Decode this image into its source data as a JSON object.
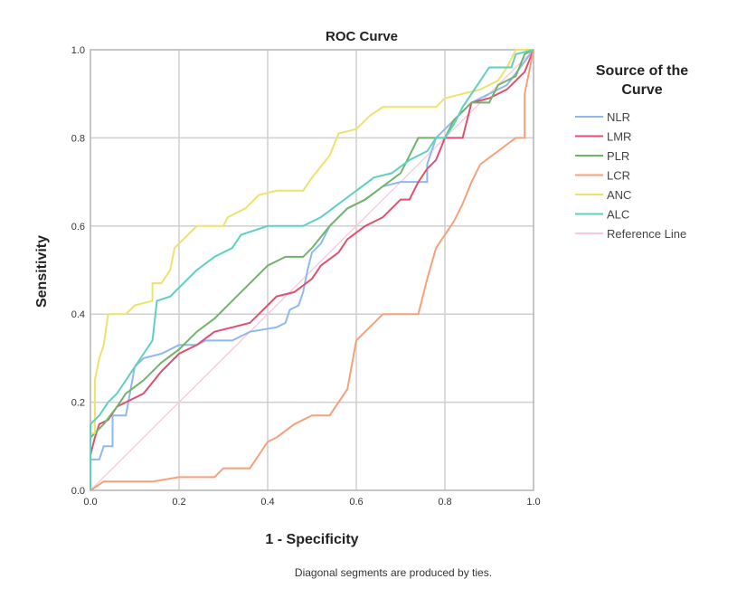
{
  "chart_data": {
    "type": "line",
    "title": "ROC Curve",
    "xlabel": "1 - Specificity",
    "ylabel": "Sensitivity",
    "xlim": [
      0,
      1
    ],
    "ylim": [
      0,
      1
    ],
    "grid": true,
    "xticks": [
      "0.0",
      "0.2",
      "0.4",
      "0.6",
      "0.8",
      "1.0"
    ],
    "yticks": [
      "0.0",
      "0.2",
      "0.4",
      "0.6",
      "0.8",
      "1.0"
    ],
    "legend": {
      "title": "Source of the Curve",
      "placement": "right"
    },
    "footnote": "Diagonal segments are produced by ties.",
    "series": [
      {
        "name": "NLR",
        "color": "#8fb8ee",
        "points": [
          [
            0,
            0
          ],
          [
            0,
            0.07
          ],
          [
            0.02,
            0.07
          ],
          [
            0.03,
            0.1
          ],
          [
            0.05,
            0.1
          ],
          [
            0.05,
            0.17
          ],
          [
            0.08,
            0.17
          ],
          [
            0.1,
            0.28
          ],
          [
            0.12,
            0.3
          ],
          [
            0.16,
            0.31
          ],
          [
            0.2,
            0.33
          ],
          [
            0.24,
            0.33
          ],
          [
            0.26,
            0.34
          ],
          [
            0.32,
            0.34
          ],
          [
            0.36,
            0.36
          ],
          [
            0.42,
            0.37
          ],
          [
            0.44,
            0.38
          ],
          [
            0.45,
            0.41
          ],
          [
            0.47,
            0.42
          ],
          [
            0.48,
            0.45
          ],
          [
            0.49,
            0.5
          ],
          [
            0.5,
            0.54
          ],
          [
            0.52,
            0.56
          ],
          [
            0.54,
            0.6
          ],
          [
            0.58,
            0.64
          ],
          [
            0.62,
            0.66
          ],
          [
            0.66,
            0.69
          ],
          [
            0.7,
            0.7
          ],
          [
            0.76,
            0.7
          ],
          [
            0.76,
            0.74
          ],
          [
            0.78,
            0.8
          ],
          [
            0.82,
            0.84
          ],
          [
            0.86,
            0.88
          ],
          [
            0.9,
            0.9
          ],
          [
            0.94,
            0.92
          ],
          [
            0.97,
            0.96
          ],
          [
            1,
            1
          ]
        ]
      },
      {
        "name": "LMR",
        "color": "#e0506e",
        "points": [
          [
            0,
            0
          ],
          [
            0,
            0.08
          ],
          [
            0.01,
            0.12
          ],
          [
            0.02,
            0.15
          ],
          [
            0.04,
            0.16
          ],
          [
            0.06,
            0.19
          ],
          [
            0.08,
            0.2
          ],
          [
            0.12,
            0.22
          ],
          [
            0.16,
            0.27
          ],
          [
            0.2,
            0.31
          ],
          [
            0.24,
            0.33
          ],
          [
            0.28,
            0.36
          ],
          [
            0.32,
            0.37
          ],
          [
            0.36,
            0.38
          ],
          [
            0.4,
            0.42
          ],
          [
            0.42,
            0.44
          ],
          [
            0.46,
            0.45
          ],
          [
            0.5,
            0.48
          ],
          [
            0.52,
            0.51
          ],
          [
            0.56,
            0.54
          ],
          [
            0.58,
            0.57
          ],
          [
            0.62,
            0.6
          ],
          [
            0.66,
            0.62
          ],
          [
            0.7,
            0.66
          ],
          [
            0.72,
            0.66
          ],
          [
            0.74,
            0.7
          ],
          [
            0.76,
            0.73
          ],
          [
            0.78,
            0.75
          ],
          [
            0.8,
            0.8
          ],
          [
            0.84,
            0.8
          ],
          [
            0.86,
            0.88
          ],
          [
            0.9,
            0.89
          ],
          [
            0.94,
            0.91
          ],
          [
            0.98,
            0.95
          ],
          [
            1,
            1
          ]
        ]
      },
      {
        "name": "PLR",
        "color": "#6fb46a",
        "points": [
          [
            0,
            0
          ],
          [
            0,
            0.12
          ],
          [
            0.03,
            0.15
          ],
          [
            0.06,
            0.19
          ],
          [
            0.08,
            0.22
          ],
          [
            0.12,
            0.25
          ],
          [
            0.16,
            0.29
          ],
          [
            0.2,
            0.32
          ],
          [
            0.24,
            0.36
          ],
          [
            0.28,
            0.39
          ],
          [
            0.32,
            0.43
          ],
          [
            0.36,
            0.47
          ],
          [
            0.4,
            0.51
          ],
          [
            0.44,
            0.53
          ],
          [
            0.48,
            0.53
          ],
          [
            0.5,
            0.55
          ],
          [
            0.54,
            0.6
          ],
          [
            0.58,
            0.64
          ],
          [
            0.62,
            0.66
          ],
          [
            0.66,
            0.69
          ],
          [
            0.7,
            0.72
          ],
          [
            0.72,
            0.76
          ],
          [
            0.74,
            0.8
          ],
          [
            0.8,
            0.8
          ],
          [
            0.82,
            0.84
          ],
          [
            0.86,
            0.88
          ],
          [
            0.9,
            0.88
          ],
          [
            0.92,
            0.92
          ],
          [
            0.96,
            0.94
          ],
          [
            0.98,
            0.99
          ],
          [
            1,
            1
          ]
        ]
      },
      {
        "name": "LCR",
        "color": "#f5a07a",
        "points": [
          [
            0,
            0
          ],
          [
            0.03,
            0.02
          ],
          [
            0.08,
            0.02
          ],
          [
            0.14,
            0.02
          ],
          [
            0.2,
            0.03
          ],
          [
            0.28,
            0.03
          ],
          [
            0.3,
            0.05
          ],
          [
            0.36,
            0.05
          ],
          [
            0.38,
            0.08
          ],
          [
            0.4,
            0.11
          ],
          [
            0.42,
            0.12
          ],
          [
            0.46,
            0.15
          ],
          [
            0.5,
            0.17
          ],
          [
            0.54,
            0.17
          ],
          [
            0.56,
            0.2
          ],
          [
            0.58,
            0.23
          ],
          [
            0.6,
            0.34
          ],
          [
            0.64,
            0.38
          ],
          [
            0.66,
            0.4
          ],
          [
            0.74,
            0.4
          ],
          [
            0.76,
            0.48
          ],
          [
            0.78,
            0.55
          ],
          [
            0.8,
            0.58
          ],
          [
            0.82,
            0.61
          ],
          [
            0.84,
            0.65
          ],
          [
            0.86,
            0.7
          ],
          [
            0.88,
            0.74
          ],
          [
            0.92,
            0.77
          ],
          [
            0.96,
            0.8
          ],
          [
            0.98,
            0.8
          ],
          [
            0.98,
            0.9
          ],
          [
            1,
            1
          ]
        ]
      },
      {
        "name": "ANC",
        "color": "#ece36a",
        "points": [
          [
            0,
            0
          ],
          [
            0,
            0.1
          ],
          [
            0,
            0.13
          ],
          [
            0.01,
            0.13
          ],
          [
            0.01,
            0.25
          ],
          [
            0.02,
            0.3
          ],
          [
            0.03,
            0.33
          ],
          [
            0.04,
            0.4
          ],
          [
            0.08,
            0.4
          ],
          [
            0.1,
            0.42
          ],
          [
            0.14,
            0.43
          ],
          [
            0.14,
            0.47
          ],
          [
            0.16,
            0.47
          ],
          [
            0.18,
            0.5
          ],
          [
            0.19,
            0.55
          ],
          [
            0.21,
            0.57
          ],
          [
            0.24,
            0.6
          ],
          [
            0.3,
            0.6
          ],
          [
            0.31,
            0.62
          ],
          [
            0.35,
            0.64
          ],
          [
            0.38,
            0.67
          ],
          [
            0.42,
            0.68
          ],
          [
            0.48,
            0.68
          ],
          [
            0.5,
            0.71
          ],
          [
            0.54,
            0.76
          ],
          [
            0.56,
            0.81
          ],
          [
            0.6,
            0.82
          ],
          [
            0.63,
            0.85
          ],
          [
            0.66,
            0.87
          ],
          [
            0.78,
            0.87
          ],
          [
            0.8,
            0.89
          ],
          [
            0.84,
            0.9
          ],
          [
            0.88,
            0.91
          ],
          [
            0.92,
            0.93
          ],
          [
            0.94,
            0.96
          ],
          [
            0.96,
            1.0
          ],
          [
            1,
            1
          ]
        ]
      },
      {
        "name": "ALC",
        "color": "#5fd0c0",
        "points": [
          [
            0,
            0
          ],
          [
            0,
            0.08
          ],
          [
            0,
            0.15
          ],
          [
            0.02,
            0.17
          ],
          [
            0.04,
            0.2
          ],
          [
            0.06,
            0.22
          ],
          [
            0.08,
            0.25
          ],
          [
            0.1,
            0.28
          ],
          [
            0.12,
            0.31
          ],
          [
            0.14,
            0.34
          ],
          [
            0.15,
            0.43
          ],
          [
            0.18,
            0.44
          ],
          [
            0.2,
            0.46
          ],
          [
            0.24,
            0.5
          ],
          [
            0.28,
            0.53
          ],
          [
            0.32,
            0.55
          ],
          [
            0.34,
            0.58
          ],
          [
            0.4,
            0.6
          ],
          [
            0.48,
            0.6
          ],
          [
            0.52,
            0.62
          ],
          [
            0.56,
            0.65
          ],
          [
            0.6,
            0.68
          ],
          [
            0.64,
            0.71
          ],
          [
            0.68,
            0.72
          ],
          [
            0.72,
            0.75
          ],
          [
            0.76,
            0.77
          ],
          [
            0.78,
            0.8
          ],
          [
            0.8,
            0.8
          ],
          [
            0.82,
            0.83
          ],
          [
            0.84,
            0.87
          ],
          [
            0.86,
            0.9
          ],
          [
            0.9,
            0.96
          ],
          [
            0.95,
            0.96
          ],
          [
            0.96,
            0.99
          ],
          [
            1,
            1
          ]
        ]
      },
      {
        "name": "Reference Line",
        "color": "#f9c8dc",
        "points": [
          [
            0,
            0
          ],
          [
            1,
            1
          ]
        ]
      }
    ]
  }
}
